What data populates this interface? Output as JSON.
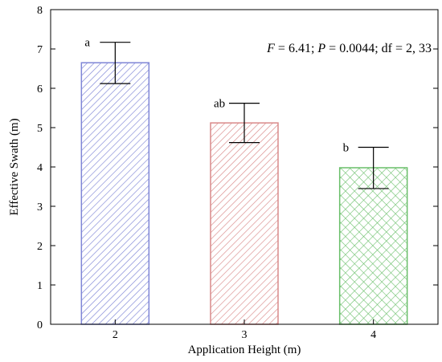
{
  "chart_data": {
    "type": "bar",
    "categories": [
      "2",
      "3",
      "4"
    ],
    "values": [
      6.65,
      5.12,
      3.98
    ],
    "error_upper": [
      7.17,
      5.62,
      4.5
    ],
    "error_lower": [
      6.12,
      4.62,
      3.45
    ],
    "significance_letters": [
      "a",
      "ab",
      "b"
    ],
    "xlabel": "Application Height (m)",
    "ylabel": "Effective Swath (m)",
    "ylim": [
      0,
      8
    ],
    "yticks": [
      0,
      1,
      2,
      3,
      4,
      5,
      6,
      7,
      8
    ],
    "grid": false,
    "annotation": {
      "F_symbol": "F",
      "F_value": " = 6.41; ",
      "P_symbol": "P",
      "P_value": " = 0.0044; df = 2, 33"
    },
    "bar_colors": [
      "#7f86d6",
      "#d98a8a",
      "#6bbf6b"
    ],
    "bar_patterns": [
      "diagonal",
      "diagonal",
      "crosshatch"
    ]
  }
}
